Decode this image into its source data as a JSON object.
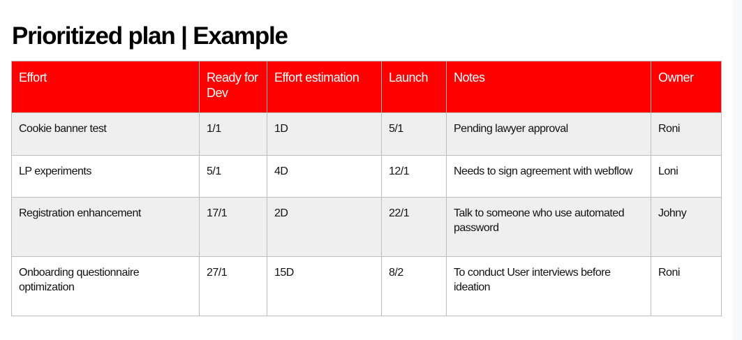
{
  "title": "Prioritized plan | Example",
  "colors": {
    "header_bg": "#ff0000",
    "header_text": "#ffffff",
    "row_alt_bg": "#efefef"
  },
  "table": {
    "headers": [
      "Effort",
      "Ready for Dev",
      "Effort estimation",
      "Launch",
      "Notes",
      "Owner"
    ],
    "rows": [
      [
        "Cookie banner test",
        "1/1",
        "1D",
        "5/1",
        "Pending lawyer approval",
        "Roni"
      ],
      [
        "LP experiments",
        "5/1",
        "4D",
        "12/1",
        "Needs to sign agreement with webflow",
        "Loni"
      ],
      [
        "Registration enhancement",
        "17/1",
        "2D",
        "22/1",
        "Talk to someone who use automated password",
        "Johny"
      ],
      [
        "Onboarding questionnaire optimization",
        "27/1",
        "15D",
        "8/2",
        "To conduct User interviews before ideation",
        "Roni"
      ]
    ]
  }
}
